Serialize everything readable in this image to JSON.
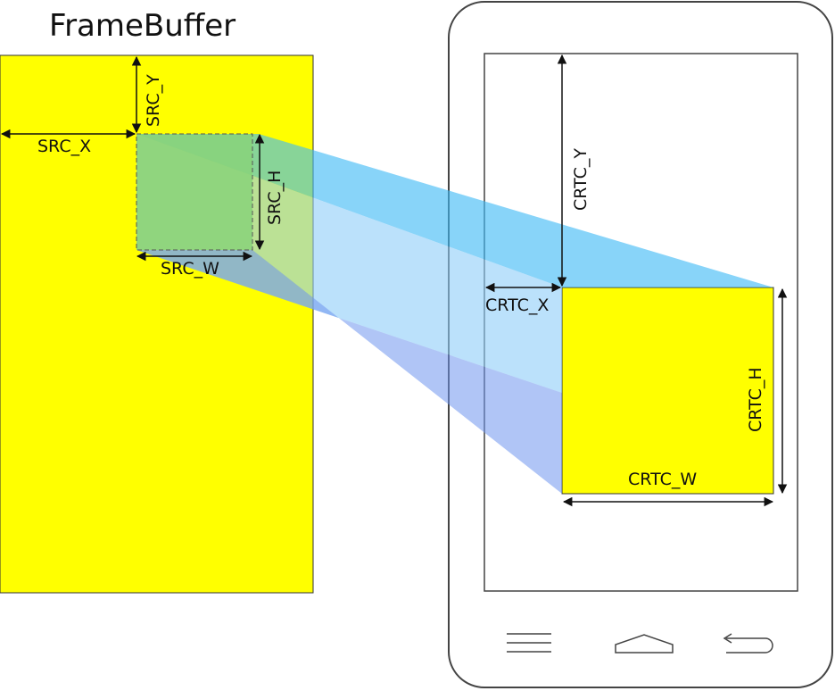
{
  "title": "FrameBuffer",
  "labels": {
    "src_x": "SRC_X",
    "src_y": "SRC_Y",
    "src_w": "SRC_W",
    "src_h": "SRC_H",
    "crtc_x": "CRTC_X",
    "crtc_y": "CRTC_Y",
    "crtc_w": "CRTC_W",
    "crtc_h": "CRTC_H"
  },
  "icons": {
    "menu": "menu-lines-icon",
    "home": "home-icon",
    "back": "back-arrow-icon"
  },
  "colors": {
    "framebuffer": "#ffff00",
    "source_region": "#8fd67a",
    "projection_top": "#5ac8f8",
    "projection_bottom": "#7b9ff0",
    "crtc_region": "#ffff00",
    "outline": "#444444"
  }
}
